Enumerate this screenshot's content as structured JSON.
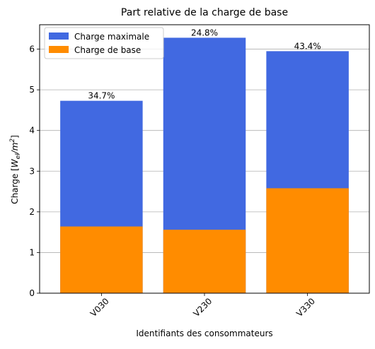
{
  "chart_data": {
    "type": "bar",
    "stacking": "overlay",
    "title": "Part relative de la charge de base",
    "xlabel": "Identifiants des consommateurs",
    "ylabel": "Charge [W_el/m^2]",
    "ylabel_parts": {
      "prefix": "Charge [",
      "main": "W",
      "sub": "el",
      "slash": "/m",
      "sup": "2",
      "suffix": "]"
    },
    "categories": [
      "V030",
      "V230",
      "V330"
    ],
    "series": [
      {
        "name": "Charge maximale",
        "values": [
          4.73,
          6.28,
          5.95
        ],
        "color": "#4169e1"
      },
      {
        "name": "Charge de base",
        "values": [
          1.64,
          1.56,
          2.58
        ],
        "color": "#ff8c00"
      }
    ],
    "bar_labels": [
      "34.7%",
      "24.8%",
      "43.4%"
    ],
    "ylim": [
      0,
      6.6
    ],
    "yticks": [
      "0",
      "1",
      "2",
      "3",
      "4",
      "5",
      "6"
    ],
    "grid": "horizontal",
    "legend_position": "upper-left",
    "tick_label_rotation_deg": 45
  }
}
